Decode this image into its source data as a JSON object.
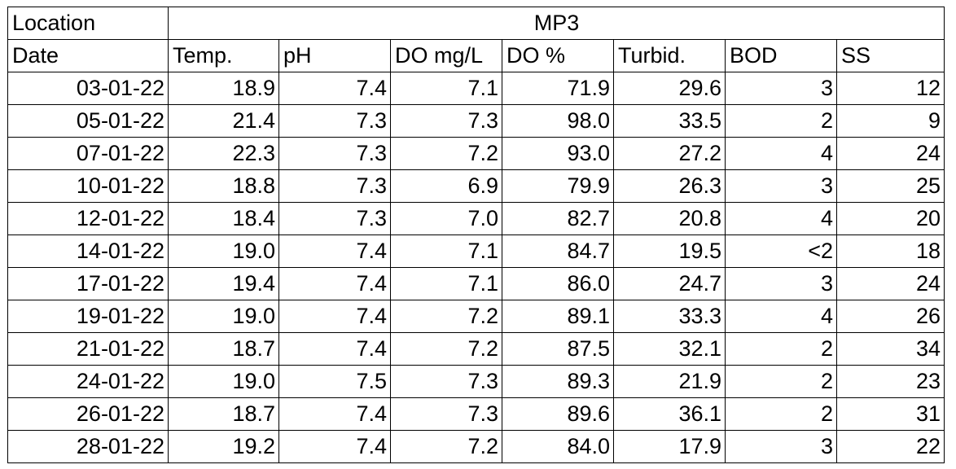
{
  "location_label": "Location",
  "location_value": "MP3",
  "headers": [
    "Date",
    "Temp.",
    "pH",
    "DO mg/L",
    "DO %",
    "Turbid.",
    "BOD",
    "SS"
  ],
  "rows": [
    [
      "03-01-22",
      "18.9",
      "7.4",
      "7.1",
      "71.9",
      "29.6",
      "3",
      "12"
    ],
    [
      "05-01-22",
      "21.4",
      "7.3",
      "7.3",
      "98.0",
      "33.5",
      "2",
      "9"
    ],
    [
      "07-01-22",
      "22.3",
      "7.3",
      "7.2",
      "93.0",
      "27.2",
      "4",
      "24"
    ],
    [
      "10-01-22",
      "18.8",
      "7.3",
      "6.9",
      "79.9",
      "26.3",
      "3",
      "25"
    ],
    [
      "12-01-22",
      "18.4",
      "7.3",
      "7.0",
      "82.7",
      "20.8",
      "4",
      "20"
    ],
    [
      "14-01-22",
      "19.0",
      "7.4",
      "7.1",
      "84.7",
      "19.5",
      "<2",
      "18"
    ],
    [
      "17-01-22",
      "19.4",
      "7.4",
      "7.1",
      "86.0",
      "24.7",
      "3",
      "24"
    ],
    [
      "19-01-22",
      "19.0",
      "7.4",
      "7.2",
      "89.1",
      "33.3",
      "4",
      "26"
    ],
    [
      "21-01-22",
      "18.7",
      "7.4",
      "7.2",
      "87.5",
      "32.1",
      "2",
      "34"
    ],
    [
      "24-01-22",
      "19.0",
      "7.5",
      "7.3",
      "89.3",
      "21.9",
      "2",
      "23"
    ],
    [
      "26-01-22",
      "18.7",
      "7.4",
      "7.3",
      "89.6",
      "36.1",
      "2",
      "31"
    ],
    [
      "28-01-22",
      "19.2",
      "7.4",
      "7.2",
      "84.0",
      "17.9",
      "3",
      "22"
    ]
  ]
}
